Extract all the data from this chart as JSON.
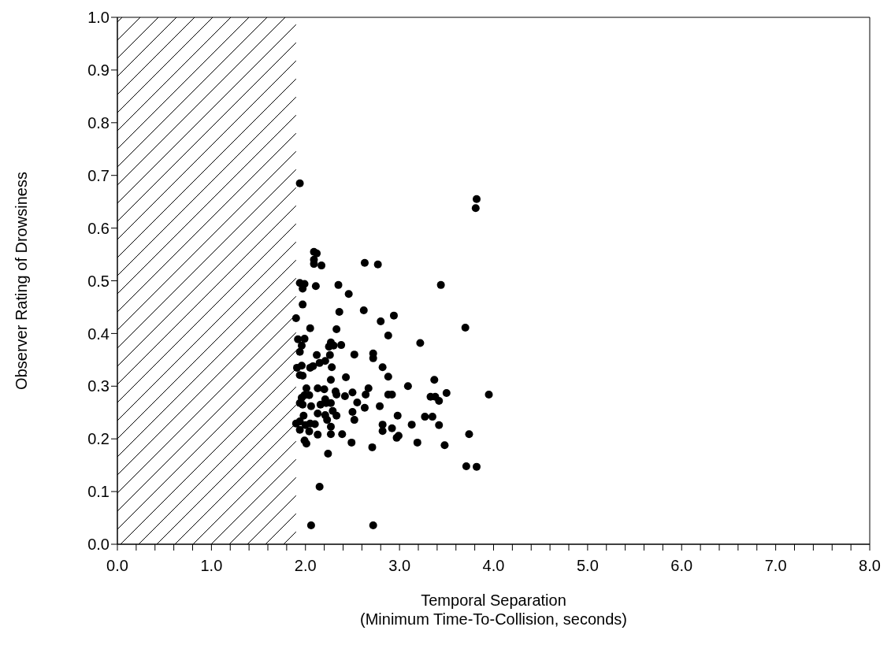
{
  "chart_data": {
    "type": "scatter",
    "xlabel": "Temporal Separation\n(Minimum Time-To-Collision, seconds)",
    "ylabel": "Observer Rating of Drowsiness",
    "xlim": [
      0,
      8
    ],
    "ylim": [
      0,
      1
    ],
    "xticks": [
      {
        "value": 0,
        "label": "0.0"
      },
      {
        "value": 0.2,
        "label": null
      },
      {
        "value": 0.4,
        "label": null
      },
      {
        "value": 0.6,
        "label": null
      },
      {
        "value": 0.8,
        "label": null
      },
      {
        "value": 1,
        "label": "1.0"
      },
      {
        "value": 1.2,
        "label": null
      },
      {
        "value": 1.4,
        "label": null
      },
      {
        "value": 1.6,
        "label": null
      },
      {
        "value": 1.8,
        "label": null
      },
      {
        "value": 2,
        "label": "2.0"
      },
      {
        "value": 2.2,
        "label": null
      },
      {
        "value": 2.4,
        "label": null
      },
      {
        "value": 2.6,
        "label": null
      },
      {
        "value": 2.8,
        "label": null
      },
      {
        "value": 3,
        "label": "3.0"
      },
      {
        "value": 3.2,
        "label": null
      },
      {
        "value": 3.4,
        "label": null
      },
      {
        "value": 3.6,
        "label": null
      },
      {
        "value": 3.8,
        "label": null
      },
      {
        "value": 4,
        "label": "4.0"
      },
      {
        "value": 4.2,
        "label": null
      },
      {
        "value": 4.4,
        "label": null
      },
      {
        "value": 4.6,
        "label": null
      },
      {
        "value": 4.8,
        "label": null
      },
      {
        "value": 5,
        "label": "5.0"
      },
      {
        "value": 5.2,
        "label": null
      },
      {
        "value": 5.4,
        "label": null
      },
      {
        "value": 5.6,
        "label": null
      },
      {
        "value": 5.8,
        "label": null
      },
      {
        "value": 6,
        "label": "6.0"
      },
      {
        "value": 6.2,
        "label": null
      },
      {
        "value": 6.4,
        "label": null
      },
      {
        "value": 6.6,
        "label": null
      },
      {
        "value": 6.8,
        "label": null
      },
      {
        "value": 7,
        "label": "7.0"
      },
      {
        "value": 7.2,
        "label": null
      },
      {
        "value": 7.4,
        "label": null
      },
      {
        "value": 7.6,
        "label": null
      },
      {
        "value": 7.8,
        "label": null
      },
      {
        "value": 8,
        "label": "8.0"
      }
    ],
    "yticks": [
      {
        "value": 0,
        "label": "0.0"
      },
      {
        "value": 0.1,
        "label": "0.1"
      },
      {
        "value": 0.2,
        "label": "0.2"
      },
      {
        "value": 0.3,
        "label": "0.3"
      },
      {
        "value": 0.4,
        "label": "0.4"
      },
      {
        "value": 0.5,
        "label": "0.5"
      },
      {
        "value": 0.6,
        "label": "0.6"
      },
      {
        "value": 0.7,
        "label": "0.7"
      },
      {
        "value": 0.8,
        "label": "0.8"
      },
      {
        "value": 0.9,
        "label": "0.9"
      },
      {
        "value": 1,
        "label": "1.0"
      }
    ],
    "grid": false,
    "legend": false,
    "marker": "circle",
    "bands": [
      {
        "axis": "x",
        "from": 0,
        "to": 1.9
      }
    ],
    "series": [
      {
        "color": "#000000",
        "x": [
          1.94,
          3.82,
          3.81,
          2.09,
          2.12,
          2.09,
          2.09,
          2.17,
          2.63,
          2.77,
          1.94,
          1.99,
          1.97,
          2.11,
          2.35,
          2.46,
          3.44,
          1.97,
          2.36,
          2.62,
          2.94,
          2.8,
          1.9,
          2.05,
          2.33,
          2.88,
          3.22,
          3.7,
          1.92,
          1.99,
          1.96,
          1.94,
          2.27,
          2.3,
          2.38,
          2.25,
          2.12,
          2.26,
          2.52,
          2.72,
          2.72,
          2.82,
          2.28,
          1.91,
          1.96,
          2.05,
          2.08,
          2.15,
          2.21,
          2.88,
          1.94,
          1.97,
          2.27,
          2.43,
          3.37,
          3.09,
          2.01,
          2.13,
          2.2,
          1.99,
          2.04,
          2.32,
          2.33,
          2.42,
          2.5,
          2.67,
          2.64,
          2.88,
          2.92,
          3.33,
          3.38,
          3.42,
          1.96,
          1.94,
          1.97,
          2.06,
          2.16,
          2.21,
          2.22,
          2.27,
          2.55,
          2.63,
          2.79,
          1.98,
          2.13,
          2.21,
          2.23,
          2.29,
          2.33,
          2.5,
          2.52,
          2.98,
          3.27,
          3.35,
          3.42,
          1.9,
          1.94,
          1.94,
          2.0,
          2.05,
          2.1,
          2.04,
          2.13,
          2.27,
          2.27,
          2.39,
          2.82,
          2.82,
          2.92,
          2.97,
          2.99,
          3.13,
          3.19,
          1.99,
          2.01,
          2.49,
          2.71,
          2.24,
          2.15,
          2.06,
          2.72,
          3.5,
          3.95,
          3.74,
          3.48,
          3.71,
          3.82
        ],
        "values": [
          0.685,
          0.655,
          0.638,
          0.555,
          0.552,
          0.54,
          0.532,
          0.529,
          0.534,
          0.531,
          0.496,
          0.494,
          0.485,
          0.49,
          0.492,
          0.475,
          0.492,
          0.455,
          0.441,
          0.444,
          0.434,
          0.423,
          0.429,
          0.41,
          0.408,
          0.396,
          0.382,
          0.411,
          0.389,
          0.39,
          0.377,
          0.365,
          0.383,
          0.377,
          0.378,
          0.375,
          0.359,
          0.359,
          0.36,
          0.362,
          0.353,
          0.336,
          0.336,
          0.335,
          0.339,
          0.335,
          0.338,
          0.344,
          0.348,
          0.318,
          0.321,
          0.32,
          0.312,
          0.317,
          0.312,
          0.3,
          0.296,
          0.296,
          0.294,
          0.283,
          0.283,
          0.29,
          0.284,
          0.281,
          0.288,
          0.296,
          0.284,
          0.284,
          0.284,
          0.28,
          0.28,
          0.272,
          0.278,
          0.268,
          0.265,
          0.262,
          0.265,
          0.275,
          0.268,
          0.268,
          0.269,
          0.259,
          0.262,
          0.244,
          0.248,
          0.245,
          0.236,
          0.253,
          0.244,
          0.251,
          0.236,
          0.244,
          0.242,
          0.242,
          0.226,
          0.229,
          0.233,
          0.217,
          0.226,
          0.229,
          0.228,
          0.214,
          0.208,
          0.223,
          0.209,
          0.209,
          0.227,
          0.215,
          0.22,
          0.202,
          0.206,
          0.227,
          0.193,
          0.197,
          0.191,
          0.193,
          0.184,
          0.172,
          0.109,
          0.036,
          0.036,
          0.287,
          0.284,
          0.209,
          0.188,
          0.148,
          0.147
        ]
      }
    ]
  }
}
